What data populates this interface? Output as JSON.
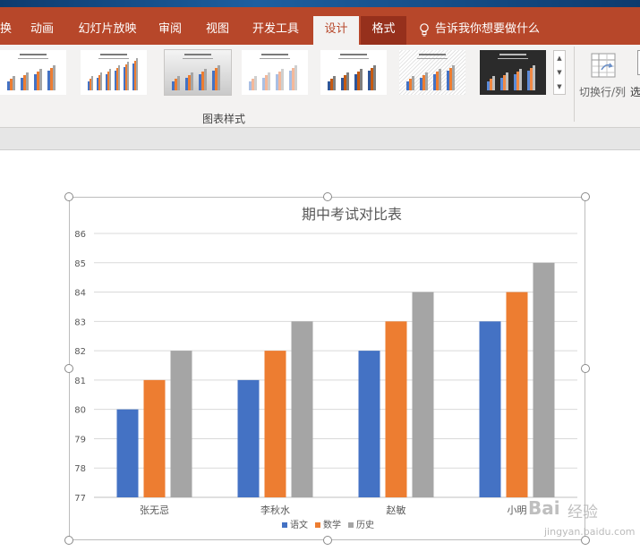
{
  "ribbon": {
    "tabs": [
      {
        "label": "换",
        "state": "normal"
      },
      {
        "label": "动画",
        "state": "normal"
      },
      {
        "label": "幻灯片放映",
        "state": "normal"
      },
      {
        "label": "审阅",
        "state": "normal"
      },
      {
        "label": "视图",
        "state": "normal"
      },
      {
        "label": "开发工具",
        "state": "normal"
      },
      {
        "label": "设计",
        "state": "active"
      },
      {
        "label": "格式",
        "state": "format"
      }
    ],
    "tell_me": "告诉我你想要做什么",
    "lightbulb_icon": "lightbulb-icon",
    "group_label": "图表样式",
    "switch_row_col": "切换行/列",
    "select_data": "选",
    "style_thumbnails": [
      {
        "style": "plain"
      },
      {
        "style": "plain-dense"
      },
      {
        "style": "gray-gradient"
      },
      {
        "style": "light-pastel"
      },
      {
        "style": "plain-dark-bars"
      },
      {
        "style": "hatched"
      },
      {
        "style": "dark"
      }
    ],
    "colors": {
      "tab_bar": "#b7472a",
      "format_tab": "#96301c",
      "ribbon_body": "#f3f2f1"
    }
  },
  "chart_data": {
    "type": "bar",
    "title": "期中考试对比表",
    "categories": [
      "张无忌",
      "李秋水",
      "赵敏",
      "小明"
    ],
    "series": [
      {
        "name": "语文",
        "color": "#4472c4",
        "values": [
          80,
          81,
          82,
          83
        ]
      },
      {
        "name": "数学",
        "color": "#ed7d31",
        "values": [
          81,
          82,
          83,
          84
        ]
      },
      {
        "name": "历史",
        "color": "#a5a5a5",
        "values": [
          82,
          83,
          84,
          85
        ]
      }
    ],
    "ylim": [
      77,
      86
    ],
    "yticks": [
      77,
      78,
      79,
      80,
      81,
      82,
      83,
      84,
      85,
      86
    ],
    "grid": true,
    "legend": "bottom"
  },
  "watermark": {
    "logo": "Bai",
    "text": "经验",
    "url": "jingyan.baidu.com"
  }
}
